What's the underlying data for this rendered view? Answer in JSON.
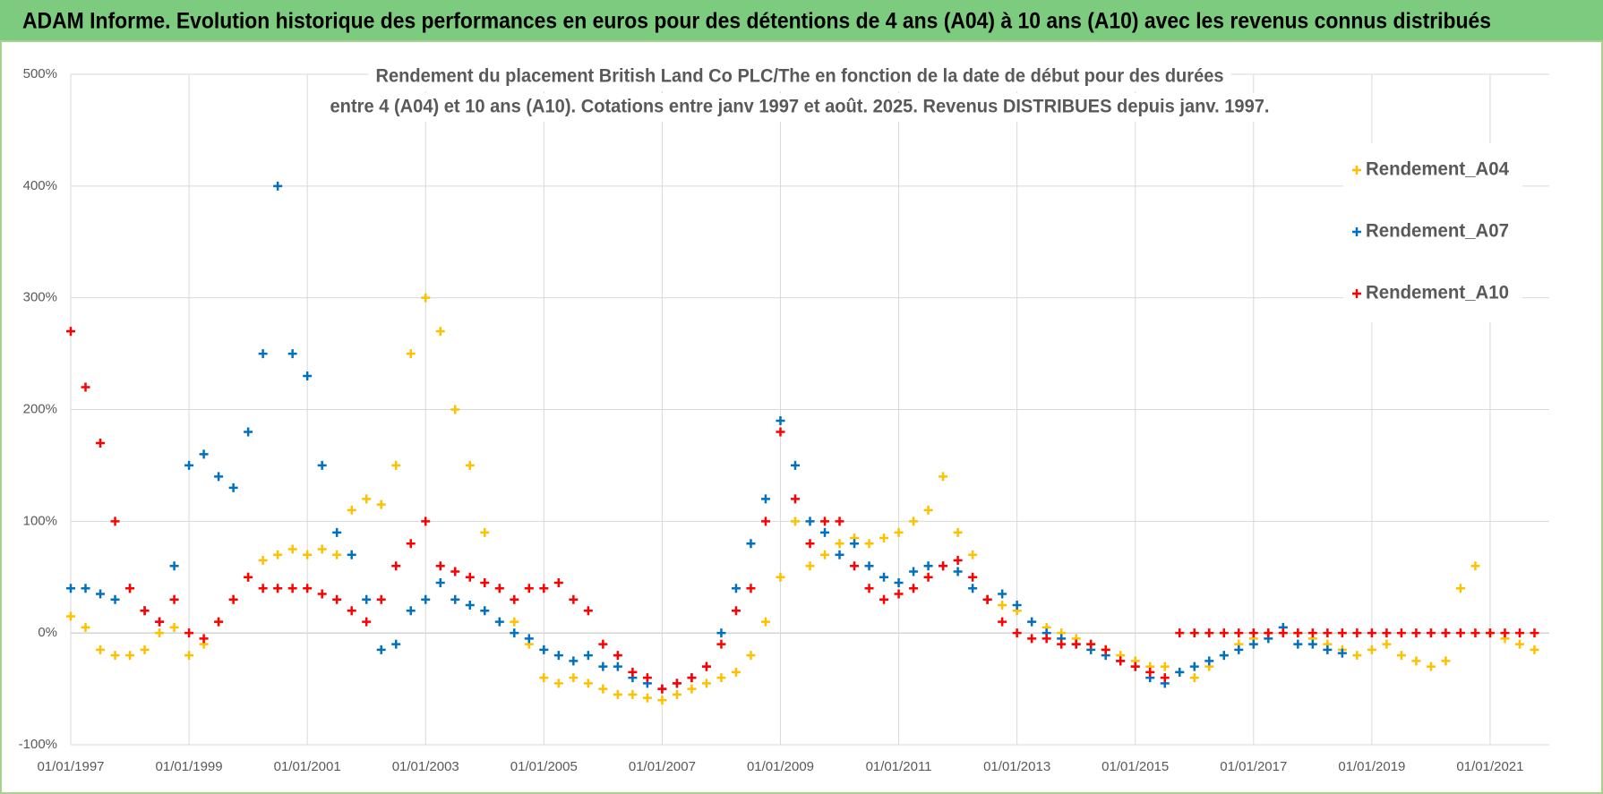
{
  "header": {
    "title": "ADAM Informe. Evolution historique des performances en euros pour des détentions de 4 ans (A04) à 10 ans (A10) avec les revenus connus distribués"
  },
  "chart_data": {
    "type": "scatter",
    "subtitle": [
      "Rendement du placement British Land Co PLC/The en fonction de la date de début pour des durées",
      "entre 4 (A04) et 10 ans (A10).  Cotations entre janv 1997 et août. 2025. Revenus DISTRIBUES  depuis janv. 1997."
    ],
    "x": [
      "01/01/1997",
      "01/04/1997",
      "01/07/1997",
      "01/10/1997",
      "01/01/1998",
      "01/04/1998",
      "01/07/1998",
      "01/10/1998",
      "01/01/1999",
      "01/04/1999",
      "01/07/1999",
      "01/10/1999",
      "01/01/2000",
      "01/04/2000",
      "01/07/2000",
      "01/10/2000",
      "01/01/2001",
      "01/04/2001",
      "01/07/2001",
      "01/10/2001",
      "01/01/2002",
      "01/04/2002",
      "01/07/2002",
      "01/10/2002",
      "01/01/2003",
      "01/04/2003",
      "01/07/2003",
      "01/10/2003",
      "01/01/2004",
      "01/04/2004",
      "01/07/2004",
      "01/10/2004",
      "01/01/2005",
      "01/04/2005",
      "01/07/2005",
      "01/10/2005",
      "01/01/2006",
      "01/04/2006",
      "01/07/2006",
      "01/10/2006",
      "01/01/2007",
      "01/04/2007",
      "01/07/2007",
      "01/10/2007",
      "01/01/2008",
      "01/04/2008",
      "01/07/2008",
      "01/10/2008",
      "01/01/2009",
      "01/04/2009",
      "01/07/2009",
      "01/10/2009",
      "01/01/2010",
      "01/04/2010",
      "01/07/2010",
      "01/10/2010",
      "01/01/2011",
      "01/04/2011",
      "01/07/2011",
      "01/10/2011",
      "01/01/2012",
      "01/04/2012",
      "01/07/2012",
      "01/10/2012",
      "01/01/2013",
      "01/04/2013",
      "01/07/2013",
      "01/10/2013",
      "01/01/2014",
      "01/04/2014",
      "01/07/2014",
      "01/10/2014",
      "01/01/2015",
      "01/04/2015",
      "01/07/2015",
      "01/10/2015",
      "01/01/2016",
      "01/04/2016",
      "01/07/2016",
      "01/10/2016",
      "01/01/2017",
      "01/04/2017",
      "01/07/2017",
      "01/10/2017",
      "01/01/2018",
      "01/04/2018",
      "01/07/2018",
      "01/10/2018",
      "01/01/2019",
      "01/04/2019",
      "01/07/2019",
      "01/10/2019",
      "01/01/2020",
      "01/04/2020",
      "01/07/2020",
      "01/10/2020",
      "01/01/2021",
      "01/04/2021",
      "01/07/2021",
      "01/10/2021"
    ],
    "series": [
      {
        "name": "Rendement_A04",
        "color": "#ffc000",
        "values": [
          15,
          5,
          -15,
          -20,
          -20,
          -15,
          0,
          5,
          -20,
          -10,
          10,
          30,
          50,
          65,
          70,
          75,
          70,
          75,
          70,
          110,
          120,
          115,
          150,
          250,
          300,
          270,
          200,
          150,
          90,
          40,
          10,
          -10,
          -40,
          -45,
          -40,
          -45,
          -50,
          -55,
          -55,
          -58,
          -60,
          -55,
          -50,
          -45,
          -40,
          -35,
          -20,
          10,
          50,
          100,
          60,
          70,
          80,
          85,
          80,
          85,
          90,
          100,
          110,
          140,
          90,
          70,
          30,
          25,
          20,
          10,
          5,
          0,
          -5,
          -10,
          -15,
          -20,
          -25,
          -30,
          -30,
          -35,
          -40,
          -30,
          -20,
          -10,
          -5,
          0,
          5,
          0,
          -5,
          -10,
          -15,
          -20,
          -15,
          -10,
          -20,
          -25,
          -30,
          -25,
          40,
          60,
          0,
          -5,
          -10,
          -15
        ]
      },
      {
        "name": "Rendement_A07",
        "color": "#0070c0",
        "values": [
          40,
          40,
          35,
          30,
          40,
          20,
          10,
          60,
          150,
          160,
          140,
          130,
          180,
          250,
          400,
          250,
          230,
          150,
          90,
          70,
          30,
          -15,
          -10,
          20,
          30,
          45,
          30,
          25,
          20,
          10,
          0,
          -5,
          -15,
          -20,
          -25,
          -20,
          -30,
          -30,
          -40,
          -45,
          -50,
          -45,
          -40,
          -30,
          0,
          40,
          80,
          120,
          190,
          150,
          100,
          90,
          70,
          80,
          60,
          50,
          45,
          55,
          60,
          60,
          55,
          40,
          30,
          35,
          25,
          10,
          0,
          -5,
          -10,
          -15,
          -20,
          -25,
          -30,
          -40,
          -45,
          -35,
          -30,
          -25,
          -20,
          -15,
          -10,
          -5,
          5,
          -10,
          -10,
          -15,
          -18,
          null,
          null,
          null,
          null,
          null,
          null,
          null,
          null,
          null,
          null,
          null,
          null,
          null
        ]
      },
      {
        "name": "Rendement_A10",
        "color": "#ff0000",
        "values": [
          270,
          220,
          170,
          100,
          40,
          20,
          10,
          30,
          0,
          -5,
          10,
          30,
          50,
          40,
          40,
          40,
          40,
          35,
          30,
          20,
          10,
          30,
          60,
          80,
          100,
          60,
          55,
          50,
          45,
          40,
          30,
          40,
          40,
          45,
          30,
          20,
          -10,
          -20,
          -35,
          -40,
          -50,
          -45,
          -40,
          -30,
          -10,
          20,
          40,
          100,
          180,
          120,
          80,
          100,
          100,
          60,
          40,
          30,
          35,
          40,
          50,
          60,
          65,
          50,
          30,
          10,
          0,
          -5,
          -5,
          -10,
          -10,
          -10,
          -15,
          -25,
          -30,
          -35,
          -40,
          0,
          0,
          0,
          0,
          0,
          0,
          0,
          0,
          0,
          0,
          0,
          0,
          0,
          0,
          0,
          0,
          0,
          0,
          0,
          0,
          0,
          0,
          0,
          0,
          0
        ]
      }
    ],
    "xlim": [
      "01/01/1997",
      "01/01/2022"
    ],
    "xticks": [
      "01/01/1997",
      "01/01/1999",
      "01/01/2001",
      "01/01/2003",
      "01/01/2005",
      "01/01/2007",
      "01/01/2009",
      "01/01/2011",
      "01/01/2013",
      "01/01/2015",
      "01/01/2017",
      "01/01/2019",
      "01/01/2021"
    ],
    "ylim": [
      -100,
      500
    ],
    "yticks": [
      {
        "value": -100,
        "label": "-100%"
      },
      {
        "value": 0,
        "label": "0%"
      },
      {
        "value": 100,
        "label": "100%"
      },
      {
        "value": 200,
        "label": "200%"
      },
      {
        "value": 300,
        "label": "300%"
      },
      {
        "value": 400,
        "label": "400%"
      },
      {
        "value": 500,
        "label": "500%"
      }
    ],
    "grid": true,
    "legend": "upper right"
  }
}
